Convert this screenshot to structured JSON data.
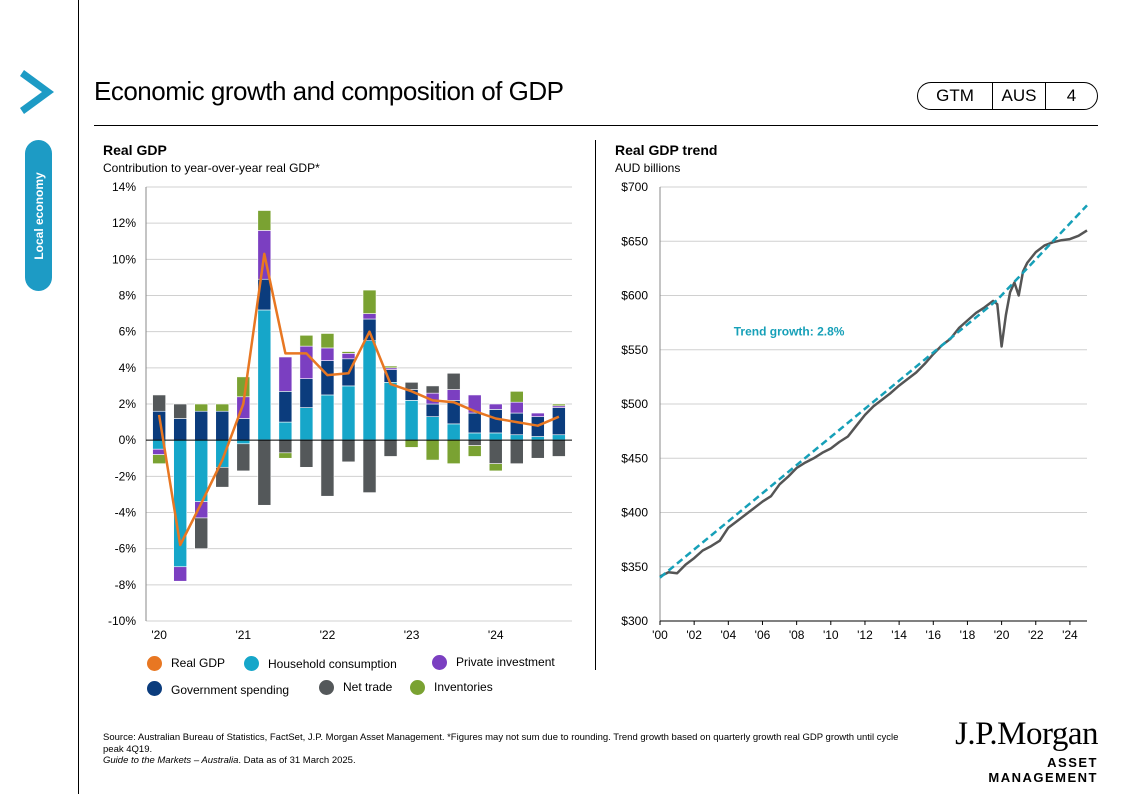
{
  "header": {
    "title": "Economic growth and composition of GDP",
    "side_tab": "Local economy",
    "badge": [
      "GTM",
      "AUS",
      "4"
    ]
  },
  "colors": {
    "real_gdp": "#e87722",
    "household": "#16a6c9",
    "private": "#7b3fc1",
    "government": "#0b3c7d",
    "net_trade": "#54585a",
    "inventories": "#7aa232",
    "trend": "#16a0b8",
    "actual": "#555555",
    "tab": "#1d9bc5"
  },
  "left_chart": {
    "title": "Real GDP",
    "subtitle": "Contribution  to year-over-year  real GDP*",
    "legend": [
      {
        "label": "Real GDP",
        "color": "#e87722"
      },
      {
        "label": "Household  consumption",
        "color": "#16a6c9"
      },
      {
        "label": "Private investment",
        "color": "#7b3fc1"
      },
      {
        "label": "Government  spending",
        "color": "#0b3c7d"
      },
      {
        "label": "Net trade",
        "color": "#54585a"
      },
      {
        "label": "Inventories",
        "color": "#7aa232"
      }
    ]
  },
  "right_chart": {
    "title": "Real GDP trend",
    "subtitle": "AUD billions",
    "annotation": "Trend growth: 2.8%"
  },
  "chart_data": [
    {
      "type": "bar",
      "stacked": true,
      "title": "Real GDP",
      "ylabel": "Contribution  to year-over-year  real GDP*",
      "ylim": [
        -10,
        14
      ],
      "yticks": [
        "14%",
        "12%",
        "10%",
        "8%",
        "6%",
        "4%",
        "2%",
        "0%",
        "-2%",
        "-4%",
        "-6%",
        "-8%",
        "-10%"
      ],
      "xtick_labels": [
        "'20",
        "'21",
        "'22",
        "'23",
        "'24"
      ],
      "grid": true,
      "categories": [
        "1Q20",
        "2Q20",
        "3Q20",
        "4Q20",
        "1Q21",
        "2Q21",
        "3Q21",
        "4Q21",
        "1Q22",
        "2Q22",
        "3Q22",
        "4Q22",
        "1Q23",
        "2Q23",
        "3Q23",
        "4Q23",
        "1Q24",
        "2Q24",
        "3Q24",
        "4Q24"
      ],
      "series": [
        {
          "name": "Household  consumption",
          "values": [
            -0.5,
            -7.0,
            -3.4,
            -1.5,
            -0.2,
            7.2,
            1.0,
            1.8,
            2.5,
            3.0,
            5.5,
            3.2,
            2.2,
            1.3,
            0.9,
            0.4,
            0.4,
            0.3,
            0.2,
            0.3
          ]
        },
        {
          "name": "Government  spending",
          "values": [
            1.6,
            1.2,
            1.6,
            1.6,
            1.2,
            1.7,
            1.7,
            1.6,
            1.9,
            1.5,
            1.2,
            0.7,
            0.6,
            0.7,
            1.3,
            1.1,
            1.3,
            1.2,
            1.1,
            1.5
          ]
        },
        {
          "name": "Private investment",
          "values": [
            -0.3,
            -0.8,
            -0.9,
            0.0,
            1.2,
            2.7,
            1.9,
            1.8,
            0.7,
            0.3,
            0.3,
            0.1,
            0.0,
            0.6,
            0.6,
            1.0,
            0.3,
            0.6,
            0.2,
            0.1
          ]
        },
        {
          "name": "Net trade",
          "values": [
            0.9,
            0.8,
            -1.7,
            -1.1,
            -1.5,
            -3.6,
            -0.7,
            -1.5,
            -3.1,
            -1.2,
            -2.9,
            -0.9,
            0.4,
            0.4,
            0.9,
            -0.3,
            -1.3,
            -1.3,
            -1.0,
            -0.9
          ]
        },
        {
          "name": "Inventories",
          "values": [
            -0.5,
            0.0,
            0.4,
            0.4,
            1.1,
            1.1,
            -0.3,
            0.6,
            0.8,
            0.1,
            1.3,
            0.1,
            -0.4,
            -1.1,
            -1.3,
            -0.6,
            -0.4,
            0.6,
            0.0,
            0.1
          ]
        },
        {
          "name": "Real GDP",
          "type": "line",
          "values": [
            1.4,
            -5.8,
            -3.5,
            -1.1,
            2.0,
            10.3,
            4.8,
            4.8,
            3.6,
            3.7,
            6.0,
            3.1,
            2.7,
            2.2,
            2.1,
            1.6,
            1.2,
            1.0,
            0.8,
            1.3
          ]
        }
      ]
    },
    {
      "type": "line",
      "title": "Real GDP trend",
      "ylabel": "AUD billions",
      "ylim": [
        300,
        700
      ],
      "yticks": [
        "$700",
        "$650",
        "$600",
        "$550",
        "$500",
        "$450",
        "$400",
        "$350",
        "$300"
      ],
      "xlim": [
        2000,
        2025
      ],
      "xtick_labels": [
        "'00",
        "'02",
        "'04",
        "'06",
        "'08",
        "'10",
        "'12",
        "'14",
        "'16",
        "'18",
        "'20",
        "'22",
        "'24"
      ],
      "annotation": "Trend growth: 2.8%",
      "series": [
        {
          "name": "Actual",
          "x": [
            2000,
            2000.5,
            2001,
            2001.5,
            2002,
            2002.5,
            2003,
            2003.5,
            2004,
            2004.5,
            2005,
            2005.5,
            2006,
            2006.5,
            2007,
            2007.5,
            2008,
            2008.5,
            2009,
            2009.5,
            2010,
            2010.5,
            2011,
            2011.5,
            2012,
            2012.5,
            2013,
            2013.5,
            2014,
            2014.5,
            2015,
            2015.5,
            2016,
            2016.5,
            2017,
            2017.5,
            2018,
            2018.5,
            2019,
            2019.5,
            2019.75,
            2020.0,
            2020.25,
            2020.5,
            2020.75,
            2021.0,
            2021.25,
            2021.5,
            2021.75,
            2022,
            2022.5,
            2023,
            2023.5,
            2024,
            2024.5,
            2025
          ],
          "values": [
            341,
            345,
            344,
            352,
            358,
            365,
            369,
            374,
            386,
            392,
            398,
            404,
            410,
            415,
            426,
            433,
            441,
            446,
            450,
            455,
            459,
            465,
            470,
            480,
            490,
            498,
            504,
            510,
            517,
            523,
            529,
            537,
            546,
            554,
            560,
            570,
            577,
            584,
            589,
            595,
            592,
            553,
            582,
            603,
            612,
            600,
            622,
            630,
            635,
            640,
            646,
            649,
            651,
            652,
            655,
            660
          ]
        },
        {
          "name": "Trend",
          "x": [
            2000,
            2019.75,
            2025
          ],
          "values": [
            340,
            596,
            683
          ]
        }
      ]
    }
  ],
  "footer": {
    "source": "Source: Australian Bureau of Statistics, FactSet, J.P.  Morgan Asset Management. *Figures may not sum due to rounding. Trend growth based on quarterly growth real GDP  growth until cycle peak 4Q19.",
    "guide": "Guide to the Markets – Australia",
    "data_date": ". Data as of 31 March 2025."
  },
  "brand": {
    "line1": "J.P.Morgan",
    "line2": "ASSET MANAGEMENT"
  }
}
